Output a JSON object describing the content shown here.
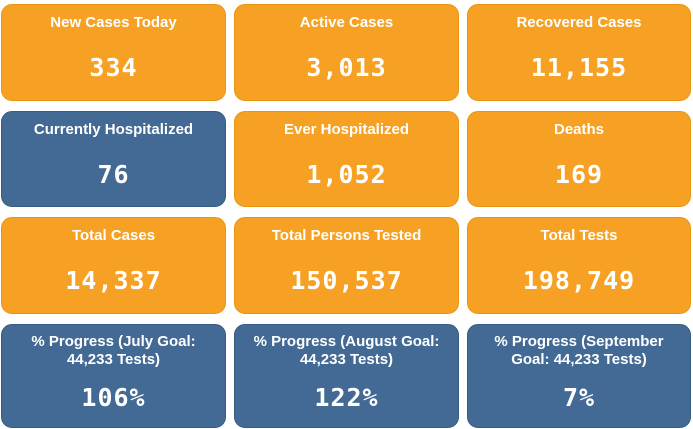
{
  "dashboard": {
    "cards": [
      {
        "label": "New Cases Today",
        "value": "334",
        "color": "#f6a123"
      },
      {
        "label": "Active Cases",
        "value": "3,013",
        "color": "#f6a123"
      },
      {
        "label": "Recovered Cases",
        "value": "11,155",
        "color": "#f6a123"
      },
      {
        "label": "Currently Hospitalized",
        "value": "76",
        "color": "#436a94"
      },
      {
        "label": "Ever Hospitalized",
        "value": "1,052",
        "color": "#f6a123"
      },
      {
        "label": "Deaths",
        "value": "169",
        "color": "#f6a123"
      },
      {
        "label": "Total Cases",
        "value": "14,337",
        "color": "#f6a123"
      },
      {
        "label": "Total Persons Tested",
        "value": "150,537",
        "color": "#f6a123"
      },
      {
        "label": "Total Tests",
        "value": "198,749",
        "color": "#f6a123"
      },
      {
        "label": "% Progress (July Goal: 44,233 Tests)",
        "value": "106%",
        "color": "#436a94"
      },
      {
        "label": "% Progress (August Goal: 44,233 Tests)",
        "value": "122%",
        "color": "#436a94"
      },
      {
        "label": "% Progress (September Goal: 44,233 Tests)",
        "value": "7%",
        "color": "#436a94"
      }
    ]
  }
}
